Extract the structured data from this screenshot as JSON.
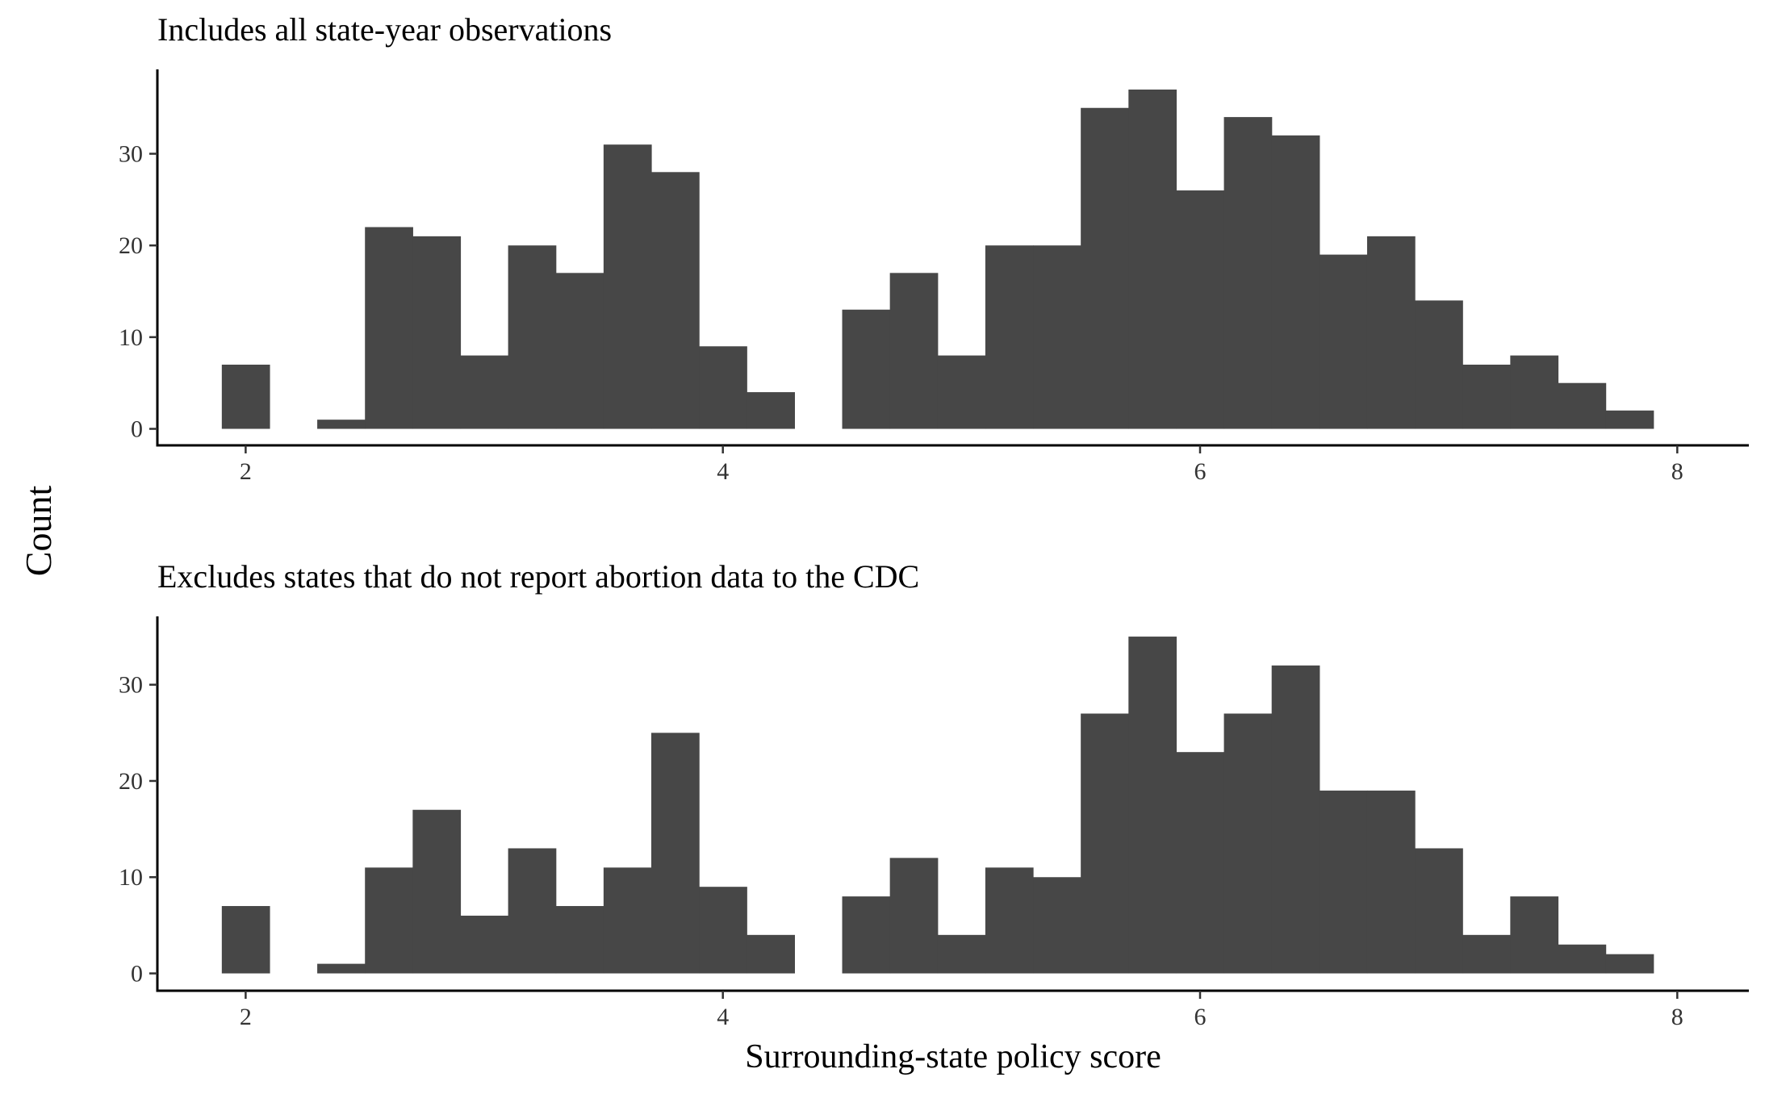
{
  "chart_data": [
    {
      "type": "bar",
      "title": "Includes all state-year observations",
      "xlabel": "",
      "ylabel": "Count",
      "xlim": [
        1.63,
        8.3
      ],
      "ylim": [
        -1.8,
        39.2
      ],
      "xticks": [
        2,
        4,
        6,
        8
      ],
      "yticks": [
        0,
        10,
        20,
        30
      ],
      "grid": false,
      "bar_color": "#474747",
      "bins": [
        {
          "x0": 1.9,
          "x1": 2.1,
          "y": 7
        },
        {
          "x0": 2.3,
          "x1": 2.5,
          "y": 1
        },
        {
          "x0": 2.5,
          "x1": 2.7,
          "y": 22
        },
        {
          "x0": 2.7,
          "x1": 2.9,
          "y": 21
        },
        {
          "x0": 2.9,
          "x1": 3.1,
          "y": 8
        },
        {
          "x0": 3.1,
          "x1": 3.3,
          "y": 20
        },
        {
          "x0": 3.3,
          "x1": 3.5,
          "y": 17
        },
        {
          "x0": 3.5,
          "x1": 3.7,
          "y": 31
        },
        {
          "x0": 3.7,
          "x1": 3.9,
          "y": 28
        },
        {
          "x0": 3.9,
          "x1": 4.1,
          "y": 9
        },
        {
          "x0": 4.1,
          "x1": 4.3,
          "y": 4
        },
        {
          "x0": 4.5,
          "x1": 4.7,
          "y": 13
        },
        {
          "x0": 4.7,
          "x1": 4.9,
          "y": 17
        },
        {
          "x0": 4.9,
          "x1": 5.1,
          "y": 8
        },
        {
          "x0": 5.1,
          "x1": 5.3,
          "y": 20
        },
        {
          "x0": 5.3,
          "x1": 5.5,
          "y": 20
        },
        {
          "x0": 5.5,
          "x1": 5.7,
          "y": 35
        },
        {
          "x0": 5.7,
          "x1": 5.9,
          "y": 37
        },
        {
          "x0": 5.9,
          "x1": 6.1,
          "y": 26
        },
        {
          "x0": 6.1,
          "x1": 6.3,
          "y": 34
        },
        {
          "x0": 6.3,
          "x1": 6.5,
          "y": 32
        },
        {
          "x0": 6.5,
          "x1": 6.7,
          "y": 19
        },
        {
          "x0": 6.7,
          "x1": 6.9,
          "y": 21
        },
        {
          "x0": 6.9,
          "x1": 7.1,
          "y": 14
        },
        {
          "x0": 7.1,
          "x1": 7.3,
          "y": 7
        },
        {
          "x0": 7.3,
          "x1": 7.5,
          "y": 8
        },
        {
          "x0": 7.5,
          "x1": 7.7,
          "y": 5
        },
        {
          "x0": 7.7,
          "x1": 7.9,
          "y": 2
        }
      ]
    },
    {
      "type": "bar",
      "title": "Excludes states that do not report abortion data to the CDC",
      "xlabel": "Surrounding-state policy score",
      "ylabel": "Count",
      "xlim": [
        1.63,
        8.3
      ],
      "ylim": [
        -1.8,
        37.1
      ],
      "xticks": [
        2,
        4,
        6,
        8
      ],
      "yticks": [
        0,
        10,
        20,
        30
      ],
      "grid": false,
      "bar_color": "#474747",
      "bins": [
        {
          "x0": 1.9,
          "x1": 2.1,
          "y": 7
        },
        {
          "x0": 2.3,
          "x1": 2.5,
          "y": 1
        },
        {
          "x0": 2.5,
          "x1": 2.7,
          "y": 11
        },
        {
          "x0": 2.7,
          "x1": 2.9,
          "y": 17
        },
        {
          "x0": 2.9,
          "x1": 3.1,
          "y": 6
        },
        {
          "x0": 3.1,
          "x1": 3.3,
          "y": 13
        },
        {
          "x0": 3.3,
          "x1": 3.5,
          "y": 7
        },
        {
          "x0": 3.5,
          "x1": 3.7,
          "y": 11
        },
        {
          "x0": 3.7,
          "x1": 3.9,
          "y": 25
        },
        {
          "x0": 3.9,
          "x1": 4.1,
          "y": 9
        },
        {
          "x0": 4.1,
          "x1": 4.3,
          "y": 4
        },
        {
          "x0": 4.5,
          "x1": 4.7,
          "y": 8
        },
        {
          "x0": 4.7,
          "x1": 4.9,
          "y": 12
        },
        {
          "x0": 4.9,
          "x1": 5.1,
          "y": 4
        },
        {
          "x0": 5.1,
          "x1": 5.3,
          "y": 11
        },
        {
          "x0": 5.3,
          "x1": 5.5,
          "y": 10
        },
        {
          "x0": 5.5,
          "x1": 5.7,
          "y": 27
        },
        {
          "x0": 5.7,
          "x1": 5.9,
          "y": 35
        },
        {
          "x0": 5.9,
          "x1": 6.1,
          "y": 23
        },
        {
          "x0": 6.1,
          "x1": 6.3,
          "y": 27
        },
        {
          "x0": 6.3,
          "x1": 6.5,
          "y": 32
        },
        {
          "x0": 6.5,
          "x1": 6.7,
          "y": 19
        },
        {
          "x0": 6.7,
          "x1": 6.9,
          "y": 19
        },
        {
          "x0": 6.9,
          "x1": 7.1,
          "y": 13
        },
        {
          "x0": 7.1,
          "x1": 7.3,
          "y": 4
        },
        {
          "x0": 7.3,
          "x1": 7.5,
          "y": 8
        },
        {
          "x0": 7.5,
          "x1": 7.7,
          "y": 3
        },
        {
          "x0": 7.7,
          "x1": 7.9,
          "y": 2
        }
      ]
    }
  ]
}
